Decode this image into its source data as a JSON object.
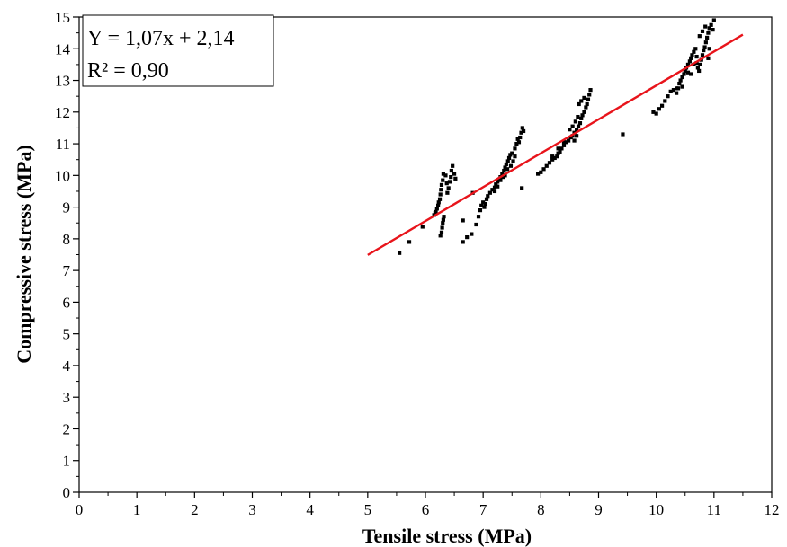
{
  "chart_data": {
    "type": "scatter",
    "xlabel": "Tensile stress (MPa)",
    "ylabel": "Compressive  stress (MPa)",
    "xlim": [
      0,
      12
    ],
    "ylim": [
      0,
      15
    ],
    "xticks": [
      0,
      1,
      2,
      3,
      4,
      5,
      6,
      7,
      8,
      9,
      10,
      11,
      12
    ],
    "yticks": [
      0,
      1,
      2,
      3,
      4,
      5,
      6,
      7,
      8,
      9,
      10,
      11,
      12,
      13,
      14,
      15
    ],
    "grid": false,
    "annotation": {
      "equation": "Y = 1,07x + 2,14",
      "r_squared": "R² = 0,90",
      "placement": "top-left"
    },
    "fit_line": {
      "slope": 1.07,
      "intercept": 2.14,
      "x_start": 5.0,
      "x_end": 11.5,
      "color": "#e8141b"
    },
    "point_color": "#000000",
    "points": [
      [
        5.55,
        7.55
      ],
      [
        5.72,
        7.9
      ],
      [
        5.95,
        8.38
      ],
      [
        6.15,
        8.75
      ],
      [
        6.17,
        8.82
      ],
      [
        6.18,
        8.85
      ],
      [
        6.2,
        8.95
      ],
      [
        6.22,
        9.05
      ],
      [
        6.23,
        9.15
      ],
      [
        6.25,
        9.25
      ],
      [
        6.26,
        9.4
      ],
      [
        6.27,
        9.55
      ],
      [
        6.28,
        9.7
      ],
      [
        6.3,
        9.85
      ],
      [
        6.31,
        10.05
      ],
      [
        6.35,
        10.0
      ],
      [
        6.37,
        9.75
      ],
      [
        6.38,
        9.45
      ],
      [
        6.4,
        9.6
      ],
      [
        6.42,
        9.8
      ],
      [
        6.44,
        9.95
      ],
      [
        6.45,
        10.15
      ],
      [
        6.47,
        10.3
      ],
      [
        6.5,
        10.05
      ],
      [
        6.52,
        9.9
      ],
      [
        6.26,
        8.1
      ],
      [
        6.28,
        8.2
      ],
      [
        6.29,
        8.35
      ],
      [
        6.3,
        8.5
      ],
      [
        6.31,
        8.6
      ],
      [
        6.32,
        8.7
      ],
      [
        6.65,
        7.9
      ],
      [
        6.72,
        8.05
      ],
      [
        6.8,
        8.15
      ],
      [
        6.82,
        9.45
      ],
      [
        6.88,
        8.45
      ],
      [
        6.65,
        8.58
      ],
      [
        6.92,
        8.7
      ],
      [
        6.95,
        8.9
      ],
      [
        6.97,
        9.05
      ],
      [
        7.0,
        9.15
      ],
      [
        7.02,
        9.0
      ],
      [
        7.04,
        9.1
      ],
      [
        7.06,
        9.25
      ],
      [
        7.08,
        9.35
      ],
      [
        7.12,
        9.45
      ],
      [
        7.16,
        9.55
      ],
      [
        7.2,
        9.62
      ],
      [
        7.22,
        9.72
      ],
      [
        7.25,
        9.8
      ],
      [
        7.28,
        9.88
      ],
      [
        7.3,
        9.95
      ],
      [
        7.33,
        10.05
      ],
      [
        7.36,
        10.15
      ],
      [
        7.38,
        10.25
      ],
      [
        7.4,
        10.35
      ],
      [
        7.43,
        10.45
      ],
      [
        7.45,
        10.55
      ],
      [
        7.47,
        10.65
      ],
      [
        7.5,
        10.7
      ],
      [
        7.38,
        10.0
      ],
      [
        7.42,
        10.2
      ],
      [
        7.48,
        10.3
      ],
      [
        7.52,
        10.45
      ],
      [
        7.55,
        10.6
      ],
      [
        7.55,
        10.85
      ],
      [
        7.58,
        11.0
      ],
      [
        7.6,
        11.15
      ],
      [
        7.62,
        11.05
      ],
      [
        7.64,
        11.2
      ],
      [
        7.66,
        11.35
      ],
      [
        7.68,
        11.5
      ],
      [
        7.7,
        11.4
      ],
      [
        7.67,
        9.6
      ],
      [
        7.2,
        9.5
      ],
      [
        7.25,
        9.65
      ],
      [
        7.3,
        9.85
      ],
      [
        7.35,
        9.95
      ],
      [
        7.95,
        10.05
      ],
      [
        8.0,
        10.1
      ],
      [
        8.05,
        10.2
      ],
      [
        8.1,
        10.3
      ],
      [
        8.15,
        10.4
      ],
      [
        8.2,
        10.5
      ],
      [
        8.24,
        10.55
      ],
      [
        8.28,
        10.6
      ],
      [
        8.3,
        10.7
      ],
      [
        8.33,
        10.75
      ],
      [
        8.36,
        10.85
      ],
      [
        8.4,
        10.95
      ],
      [
        8.44,
        11.05
      ],
      [
        8.48,
        11.1
      ],
      [
        8.52,
        11.2
      ],
      [
        8.55,
        11.25
      ],
      [
        8.58,
        11.35
      ],
      [
        8.62,
        11.45
      ],
      [
        8.65,
        11.55
      ],
      [
        8.68,
        11.65
      ],
      [
        8.7,
        11.8
      ],
      [
        8.72,
        11.9
      ],
      [
        8.75,
        12.0
      ],
      [
        8.78,
        12.15
      ],
      [
        8.8,
        12.25
      ],
      [
        8.82,
        12.4
      ],
      [
        8.84,
        12.55
      ],
      [
        8.86,
        12.7
      ],
      [
        8.66,
        12.25
      ],
      [
        8.7,
        12.35
      ],
      [
        8.75,
        12.45
      ],
      [
        8.5,
        11.45
      ],
      [
        8.55,
        11.55
      ],
      [
        8.6,
        11.7
      ],
      [
        8.64,
        11.85
      ],
      [
        8.4,
        11.05
      ],
      [
        8.3,
        10.85
      ],
      [
        8.2,
        10.6
      ],
      [
        8.62,
        11.25
      ],
      [
        8.58,
        11.1
      ],
      [
        9.42,
        11.3
      ],
      [
        9.95,
        12.0
      ],
      [
        10.0,
        11.95
      ],
      [
        10.05,
        12.1
      ],
      [
        10.1,
        12.2
      ],
      [
        10.15,
        12.35
      ],
      [
        10.2,
        12.5
      ],
      [
        10.25,
        12.65
      ],
      [
        10.3,
        12.7
      ],
      [
        10.35,
        12.6
      ],
      [
        10.38,
        12.75
      ],
      [
        10.4,
        12.9
      ],
      [
        10.42,
        13.0
      ],
      [
        10.45,
        13.1
      ],
      [
        10.48,
        13.2
      ],
      [
        10.5,
        13.3
      ],
      [
        10.52,
        13.4
      ],
      [
        10.55,
        13.5
      ],
      [
        10.58,
        13.6
      ],
      [
        10.6,
        13.7
      ],
      [
        10.62,
        13.8
      ],
      [
        10.65,
        13.9
      ],
      [
        10.68,
        14.0
      ],
      [
        10.7,
        13.55
      ],
      [
        10.72,
        13.4
      ],
      [
        10.74,
        13.3
      ],
      [
        10.76,
        13.5
      ],
      [
        10.78,
        13.65
      ],
      [
        10.8,
        13.8
      ],
      [
        10.82,
        13.95
      ],
      [
        10.84,
        14.05
      ],
      [
        10.86,
        14.2
      ],
      [
        10.88,
        14.35
      ],
      [
        10.9,
        14.5
      ],
      [
        10.92,
        14.65
      ],
      [
        10.95,
        14.75
      ],
      [
        10.98,
        14.6
      ],
      [
        11.0,
        14.9
      ],
      [
        10.75,
        14.4
      ],
      [
        10.8,
        14.55
      ],
      [
        10.85,
        14.7
      ],
      [
        10.6,
        13.2
      ],
      [
        10.55,
        13.25
      ],
      [
        10.65,
        13.5
      ],
      [
        10.7,
        13.75
      ],
      [
        10.9,
        13.7
      ],
      [
        10.92,
        14.0
      ],
      [
        10.45,
        12.8
      ],
      [
        10.35,
        12.75
      ]
    ]
  }
}
